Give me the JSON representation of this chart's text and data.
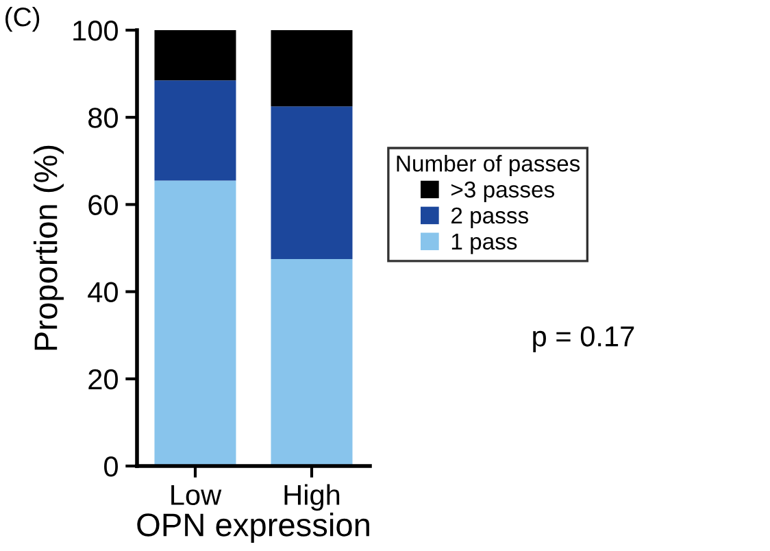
{
  "chart_data": {
    "type": "bar",
    "stacked": true,
    "xlabel": "OPN expression",
    "ylabel": "Proportion (%)",
    "categories": [
      "Low",
      "High"
    ],
    "series": [
      {
        "name": "1 pass",
        "color": "#88c4ec",
        "values": [
          65.5,
          47.5
        ]
      },
      {
        "name": "2 passs",
        "color": "#1c479c",
        "values": [
          23,
          35
        ]
      },
      {
        "name": ">3 passes",
        "color": "#000000",
        "values": [
          11.5,
          17.5
        ]
      }
    ],
    "ylim": [
      0,
      100
    ],
    "yticks": [
      0,
      20,
      40,
      60,
      80,
      100
    ],
    "grid": false,
    "legend": "right",
    "legend_title": "Number of passes",
    "annotations": [
      "(C)",
      "p = 0.17"
    ]
  }
}
